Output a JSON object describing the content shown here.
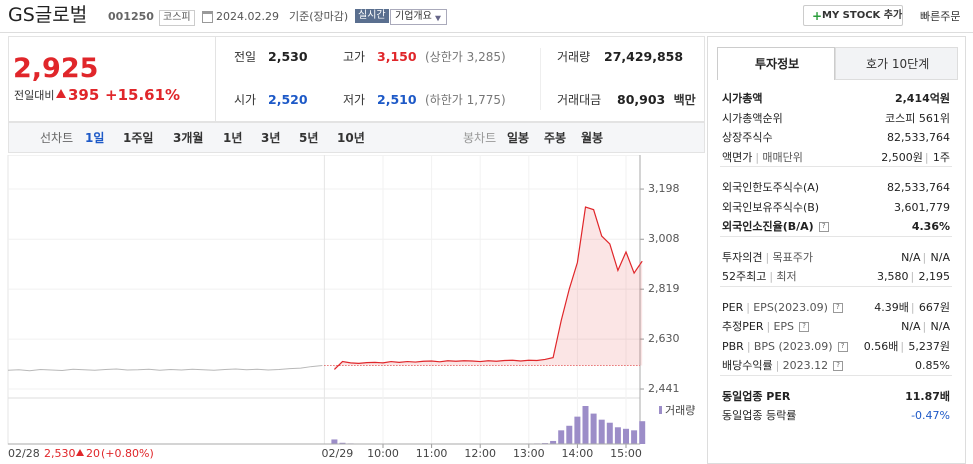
{
  "header": {
    "name": "GS글로벌",
    "code": "001250",
    "market": "코스피",
    "date": "2024.02.29",
    "status": "기준(장마감)",
    "realtime": "실시간",
    "overview": "기업개요",
    "mystock": "MY STOCK 추가",
    "quickorder": "빠른주문"
  },
  "price": {
    "current": "2,925",
    "change_label": "전일대비",
    "change": "395",
    "change_pct": "+15.61%"
  },
  "summary": [
    [
      {
        "label": "전일",
        "value": "2,530"
      },
      {
        "label": "고가",
        "value": "3,150",
        "extra": "(상한가 3,285)"
      },
      {
        "label": "거래량",
        "value": "27,429,858"
      }
    ],
    [
      {
        "label": "시가",
        "value": "2,520"
      },
      {
        "label": "저가",
        "value": "2,510",
        "extra": "(하한가 1,775)"
      },
      {
        "label": "거래대금",
        "value": "80,903",
        "extra": "백만"
      }
    ]
  ],
  "periods": {
    "line_label": "선차트",
    "line_options": [
      "1일",
      "1주일",
      "3개월",
      "1년",
      "3년",
      "5년",
      "10년"
    ],
    "candle_label": "봉차트",
    "candle_options": [
      "일봉",
      "주봉",
      "월봉"
    ]
  },
  "chart": {
    "type": "line",
    "ylim": [
      2407,
      3308
    ],
    "yticks": [
      {
        "value": 3198,
        "label": "3,198"
      },
      {
        "value": 3008,
        "label": "3,008"
      },
      {
        "value": 2819,
        "label": "2,819"
      },
      {
        "value": 2630,
        "label": "2,630"
      },
      {
        "value": 2441,
        "label": "2,441"
      }
    ],
    "day_labels": [
      "02/28",
      "02/29"
    ],
    "xticks": [
      "10:00",
      "11:00",
      "12:00",
      "13:00",
      "14:00",
      "15:00"
    ],
    "prev_close": {
      "value": 2530,
      "label": "2,530"
    },
    "prev_change": "20",
    "prev_change_pct": "(+0.80%)",
    "prev_day": {
      "color": "#b8b8b8",
      "values": [
        2512,
        2514,
        2510,
        2515,
        2513,
        2511,
        2516,
        2514,
        2512,
        2515,
        2517,
        2513,
        2514,
        2516,
        2512,
        2515,
        2513,
        2516,
        2514,
        2512,
        2515,
        2517,
        2514,
        2516,
        2513,
        2515,
        2518,
        2520,
        2526,
        2530
      ]
    },
    "x": [
      "09:00",
      "09:10",
      "09:20",
      "09:30",
      "09:40",
      "09:50",
      "10:00",
      "10:10",
      "10:20",
      "10:30",
      "10:40",
      "10:50",
      "11:00",
      "11:10",
      "11:20",
      "11:30",
      "11:40",
      "11:50",
      "12:00",
      "12:10",
      "12:20",
      "12:30",
      "12:40",
      "12:50",
      "13:00",
      "13:10",
      "13:20",
      "13:30",
      "13:40",
      "13:50",
      "14:00",
      "14:10",
      "14:20",
      "14:30",
      "14:40",
      "14:50",
      "15:00",
      "15:10",
      "15:20"
    ],
    "values": [
      2515,
      2545,
      2540,
      2538,
      2541,
      2542,
      2540,
      2545,
      2542,
      2545,
      2543,
      2546,
      2547,
      2544,
      2548,
      2546,
      2548,
      2547,
      2545,
      2548,
      2546,
      2549,
      2550,
      2547,
      2550,
      2549,
      2553,
      2560,
      2700,
      2820,
      2920,
      3130,
      3120,
      3020,
      2990,
      2890,
      2960,
      2880,
      2925
    ],
    "color": "#e0262a",
    "volume_label": "거래량",
    "volume_color": "#9c8dc8",
    "volume": [
      300000,
      80000,
      40000,
      30000,
      30000,
      25000,
      30000,
      35000,
      30000,
      28000,
      30000,
      32000,
      30000,
      28000,
      30000,
      26000,
      30000,
      28000,
      25000,
      30000,
      28000,
      30000,
      32000,
      30000,
      35000,
      40000,
      60000,
      200000,
      900000,
      1200000,
      1800000,
      2500000,
      2000000,
      1600000,
      1400000,
      1100000,
      1000000,
      900000,
      1500000
    ]
  },
  "invest": {
    "tabs": [
      "투자정보",
      "호가 10단계"
    ],
    "sections": [
      [
        {
          "label": [
            "시가총액"
          ],
          "value": [
            "2,414억원"
          ],
          "bold": true
        },
        {
          "label": [
            "시가총액순위"
          ],
          "value": [
            "코스피 561위"
          ]
        },
        {
          "label": [
            "상장주식수"
          ],
          "value": [
            "82,533,764"
          ]
        },
        {
          "label": [
            "액면가",
            "매매단위"
          ],
          "value": [
            "2,500원",
            "1주"
          ]
        }
      ],
      [
        {
          "label": [
            "외국인한도주식수(A)"
          ],
          "value": [
            "82,533,764"
          ]
        },
        {
          "label": [
            "외국인보유주식수(B)"
          ],
          "value": [
            "3,601,779"
          ]
        },
        {
          "label": [
            "외국인소진율(B/A)"
          ],
          "value": [
            "4.36%"
          ],
          "bold": true,
          "help": true
        }
      ],
      [
        {
          "label": [
            "투자의견",
            "목표주가"
          ],
          "value": [
            "N/A",
            "N/A"
          ]
        },
        {
          "label": [
            "52주최고",
            "최저"
          ],
          "value": [
            "3,580",
            "2,195"
          ]
        }
      ],
      [
        {
          "label": [
            "PER",
            "EPS(2023.09)"
          ],
          "value": [
            "4.39배",
            "667원"
          ],
          "help": true
        },
        {
          "label": [
            "추정PER",
            "EPS"
          ],
          "value": [
            "N/A",
            "N/A"
          ],
          "help": true
        },
        {
          "label": [
            "PBR",
            "BPS (2023.09)"
          ],
          "value": [
            "0.56배",
            "5,237원"
          ],
          "help": true
        },
        {
          "label": [
            "배당수익률",
            "2023.12"
          ],
          "value": [
            "0.85%"
          ],
          "help": true
        }
      ],
      [
        {
          "label": [
            "동일업종 PER"
          ],
          "value": [
            "11.87배"
          ],
          "bold": true
        },
        {
          "label": [
            "동일업종 등락률"
          ],
          "value": [
            "-0.47%"
          ],
          "blue": true
        }
      ]
    ]
  }
}
